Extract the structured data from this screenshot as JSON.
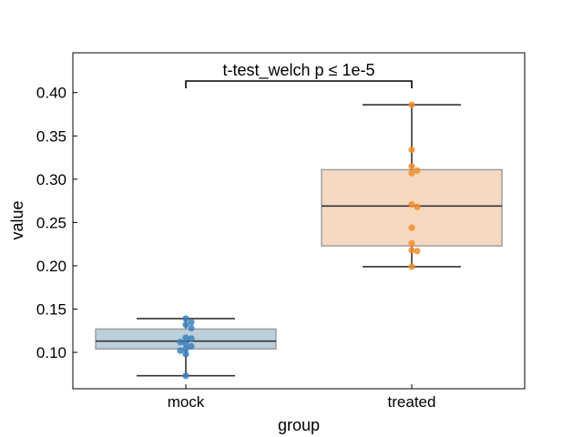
{
  "chart_data": {
    "type": "box",
    "xlabel": "group",
    "ylabel": "value",
    "categories": [
      "mock",
      "treated"
    ],
    "ylim": [
      0.058,
      0.446
    ],
    "yticks": [
      0.1,
      0.15,
      0.2,
      0.25,
      0.3,
      0.35,
      0.4
    ],
    "ytick_labels": [
      "0.10",
      "0.15",
      "0.20",
      "0.25",
      "0.30",
      "0.35",
      "0.40"
    ],
    "grid": false,
    "annotation": "t-test_welch p ≤ 1e-5",
    "groups": [
      {
        "name": "mock",
        "box_color": "#bccfdc",
        "point_color": "#3b80bd",
        "whisker_low": 0.073,
        "q1": 0.104,
        "median": 0.113,
        "q3": 0.127,
        "whisker_high": 0.139,
        "points": [
          0.139,
          0.135,
          0.132,
          0.128,
          0.117,
          0.116,
          0.112,
          0.11,
          0.107,
          0.104,
          0.102,
          0.098,
          0.073
        ]
      },
      {
        "name": "treated",
        "box_color": "#f5d8c0",
        "point_color": "#f28e2b",
        "whisker_low": 0.199,
        "q1": 0.223,
        "median": 0.269,
        "q3": 0.311,
        "whisker_high": 0.386,
        "points": [
          0.386,
          0.334,
          0.315,
          0.31,
          0.307,
          0.271,
          0.268,
          0.244,
          0.226,
          0.218,
          0.217,
          0.199
        ]
      }
    ]
  }
}
